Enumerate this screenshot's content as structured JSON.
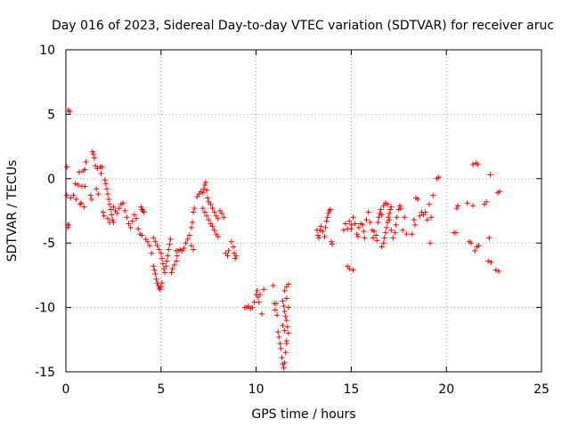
{
  "chart_data": {
    "type": "scatter",
    "title": "Day 016 of 2023, Sidereal Day-to-day VTEC variation (SDTVAR) for receiver aruc",
    "xlabel": "GPS time / hours",
    "ylabel": "SDTVAR / TECUs",
    "xlim": [
      0,
      25
    ],
    "ylim": [
      -15,
      10
    ],
    "xticks": [
      0,
      5,
      10,
      15,
      20,
      25
    ],
    "xtick_labels": [
      "0",
      "5",
      "10",
      "15",
      "20",
      "25"
    ],
    "yticks": [
      10,
      5,
      0,
      -5,
      -10,
      -15
    ],
    "ytick_labels": [
      "10",
      "5",
      "0",
      "-5",
      "-10",
      "-15"
    ],
    "grid": true,
    "marker": "+",
    "color": "#ff0000",
    "series": [
      {
        "name": "SDTVAR",
        "points": [
          [
            0.05,
            0.9
          ],
          [
            0.05,
            -1.3
          ],
          [
            0.1,
            -3.6
          ],
          [
            0.1,
            -3.8
          ],
          [
            0.12,
            5.3
          ],
          [
            0.15,
            -3.6
          ],
          [
            0.2,
            5.2
          ],
          [
            0.25,
            -1.5
          ],
          [
            0.4,
            -1.3
          ],
          [
            0.5,
            -0.4
          ],
          [
            0.55,
            -1.6
          ],
          [
            0.65,
            -0.5
          ],
          [
            0.7,
            0.5
          ],
          [
            0.75,
            -2.0
          ],
          [
            0.8,
            -1.9
          ],
          [
            0.85,
            -0.6
          ],
          [
            0.9,
            0.6
          ],
          [
            0.95,
            -2.2
          ],
          [
            1.0,
            0.7
          ],
          [
            1.0,
            -0.6
          ],
          [
            1.05,
            1.3
          ],
          [
            1.3,
            -1.3
          ],
          [
            1.35,
            -1.6
          ],
          [
            1.4,
            2.1
          ],
          [
            1.45,
            1.9
          ],
          [
            1.5,
            1.6
          ],
          [
            1.55,
            1.0
          ],
          [
            1.6,
            -0.8
          ],
          [
            1.65,
            0.8
          ],
          [
            1.7,
            -1.2
          ],
          [
            1.8,
            0.9
          ],
          [
            1.85,
            0.4
          ],
          [
            1.9,
            0.9
          ],
          [
            1.95,
            -2.6
          ],
          [
            2.0,
            -2.9
          ],
          [
            2.05,
            -0.1
          ],
          [
            2.1,
            -0.4
          ],
          [
            2.15,
            -0.8
          ],
          [
            2.2,
            -1.2
          ],
          [
            2.25,
            -1.6
          ],
          [
            2.3,
            -2.0
          ],
          [
            2.35,
            -2.4
          ],
          [
            2.4,
            -2.8
          ],
          [
            2.45,
            -3.2
          ],
          [
            2.5,
            -3.4
          ],
          [
            2.2,
            -3.1
          ],
          [
            2.3,
            -3.4
          ],
          [
            2.5,
            -2.2
          ],
          [
            2.6,
            -2.5
          ],
          [
            2.7,
            -2.7
          ],
          [
            2.8,
            -2.3
          ],
          [
            2.9,
            -2.0
          ],
          [
            3.0,
            -1.9
          ],
          [
            3.1,
            -2.5
          ],
          [
            3.2,
            -3.0
          ],
          [
            3.3,
            -3.5
          ],
          [
            3.4,
            -3.8
          ],
          [
            3.5,
            -3.3
          ],
          [
            3.6,
            -2.8
          ],
          [
            3.7,
            -3.1
          ],
          [
            3.8,
            -3.9
          ],
          [
            3.9,
            -4.3
          ],
          [
            4.0,
            -4.4
          ],
          [
            3.95,
            -2.2
          ],
          [
            4.0,
            -2.4
          ],
          [
            4.05,
            -2.5
          ],
          [
            4.1,
            -2.6
          ],
          [
            4.2,
            -4.7
          ],
          [
            4.3,
            -4.9
          ],
          [
            4.4,
            -5.2
          ],
          [
            4.5,
            -5.8
          ],
          [
            4.6,
            -6.8
          ],
          [
            4.65,
            -7.1
          ],
          [
            4.7,
            -7.4
          ],
          [
            4.75,
            -7.8
          ],
          [
            4.8,
            -8.1
          ],
          [
            4.85,
            -8.3
          ],
          [
            4.9,
            -8.5
          ],
          [
            4.95,
            -8.6
          ],
          [
            5.0,
            -8.4
          ],
          [
            5.05,
            -8.1
          ],
          [
            4.6,
            -4.6
          ],
          [
            4.7,
            -4.9
          ],
          [
            4.8,
            -5.2
          ],
          [
            4.9,
            -5.5
          ],
          [
            5.0,
            -5.8
          ],
          [
            5.05,
            -6.2
          ],
          [
            5.1,
            -6.6
          ],
          [
            5.15,
            -7.0
          ],
          [
            5.2,
            -7.3
          ],
          [
            5.25,
            -6.8
          ],
          [
            5.3,
            -6.4
          ],
          [
            5.35,
            -6.0
          ],
          [
            5.4,
            -5.5
          ],
          [
            5.45,
            -5.1
          ],
          [
            5.5,
            -4.7
          ],
          [
            5.55,
            -7.3
          ],
          [
            5.6,
            -7.0
          ],
          [
            5.7,
            -6.7
          ],
          [
            5.8,
            -6.4
          ],
          [
            5.85,
            -6.0
          ],
          [
            5.8,
            -5.6
          ],
          [
            5.9,
            -5.6
          ],
          [
            6.0,
            -5.5
          ],
          [
            6.1,
            -5.6
          ],
          [
            6.2,
            -5.4
          ],
          [
            6.3,
            -5.0
          ],
          [
            6.4,
            -4.7
          ],
          [
            6.5,
            -4.4
          ],
          [
            6.6,
            -5.2
          ],
          [
            6.7,
            -5.5
          ],
          [
            6.6,
            -3.8
          ],
          [
            6.65,
            -3.4
          ],
          [
            6.7,
            -2.6
          ],
          [
            6.75,
            -2.3
          ],
          [
            6.9,
            -1.4
          ],
          [
            7.0,
            -1.2
          ],
          [
            7.1,
            -1.0
          ],
          [
            7.2,
            -1.1
          ],
          [
            7.25,
            -0.8
          ],
          [
            7.3,
            -0.5
          ],
          [
            7.35,
            -0.3
          ],
          [
            7.4,
            -0.9
          ],
          [
            7.45,
            -1.5
          ],
          [
            7.2,
            -2.3
          ],
          [
            7.3,
            -2.6
          ],
          [
            7.4,
            -2.9
          ],
          [
            7.5,
            -3.2
          ],
          [
            7.6,
            -3.5
          ],
          [
            7.7,
            -3.7
          ],
          [
            7.8,
            -4.0
          ],
          [
            7.9,
            -4.3
          ],
          [
            8.0,
            -4.5
          ],
          [
            7.5,
            -1.8
          ],
          [
            7.6,
            -2.0
          ],
          [
            7.7,
            -2.3
          ],
          [
            7.8,
            -2.6
          ],
          [
            7.9,
            -2.9
          ],
          [
            8.0,
            -3.1
          ],
          [
            8.1,
            -2.5
          ],
          [
            8.2,
            -2.7
          ],
          [
            8.3,
            -3.0
          ],
          [
            8.4,
            -5.8
          ],
          [
            8.5,
            -6.0
          ],
          [
            8.55,
            -5.6
          ],
          [
            8.7,
            -4.9
          ],
          [
            8.8,
            -5.3
          ],
          [
            8.85,
            -5.8
          ],
          [
            8.9,
            -6.2
          ],
          [
            8.95,
            -6.0
          ],
          [
            9.4,
            -10.0
          ],
          [
            9.5,
            -10.0
          ],
          [
            9.6,
            -9.9
          ],
          [
            9.7,
            -10.1
          ],
          [
            9.8,
            -10.0
          ],
          [
            9.9,
            -9.6
          ],
          [
            10.0,
            -9.0
          ],
          [
            10.05,
            -8.7
          ],
          [
            10.1,
            -9.2
          ],
          [
            10.15,
            -9.6
          ],
          [
            10.2,
            -9.0
          ],
          [
            10.3,
            -10.5
          ],
          [
            10.4,
            -8.6
          ],
          [
            10.9,
            -8.3
          ],
          [
            10.95,
            -9.7
          ],
          [
            11.0,
            -10.2
          ],
          [
            11.05,
            -9.7
          ],
          [
            11.1,
            -10.6
          ],
          [
            11.15,
            -11.9
          ],
          [
            11.2,
            -12.3
          ],
          [
            11.25,
            -12.8
          ],
          [
            11.3,
            -13.2
          ],
          [
            11.35,
            -13.9
          ],
          [
            11.4,
            -14.4
          ],
          [
            11.45,
            -14.7
          ],
          [
            11.5,
            -14.3
          ],
          [
            11.55,
            -13.5
          ],
          [
            11.6,
            -12.8
          ],
          [
            11.4,
            -9.5
          ],
          [
            11.45,
            -9.9
          ],
          [
            11.5,
            -10.3
          ],
          [
            11.55,
            -10.7
          ],
          [
            11.6,
            -11.0
          ],
          [
            11.65,
            -11.5
          ],
          [
            11.7,
            -12.0
          ],
          [
            11.4,
            -11.4
          ],
          [
            11.5,
            -11.8
          ],
          [
            11.6,
            -12.6
          ],
          [
            11.5,
            -8.7
          ],
          [
            11.6,
            -8.4
          ],
          [
            11.7,
            -8.2
          ],
          [
            11.6,
            -9.3
          ],
          [
            11.7,
            -10.0
          ],
          [
            13.2,
            -4.0
          ],
          [
            13.25,
            -4.4
          ],
          [
            13.3,
            -4.6
          ],
          [
            13.35,
            -4.0
          ],
          [
            13.4,
            -3.7
          ],
          [
            13.5,
            -4.1
          ],
          [
            13.6,
            -4.5
          ],
          [
            13.65,
            -3.8
          ],
          [
            13.7,
            -3.3
          ],
          [
            13.75,
            -3.0
          ],
          [
            13.8,
            -2.7
          ],
          [
            13.85,
            -2.5
          ],
          [
            13.9,
            -2.4
          ],
          [
            13.95,
            -4.9
          ],
          [
            14.0,
            -5.1
          ],
          [
            14.6,
            -4.0
          ],
          [
            14.7,
            -3.5
          ],
          [
            14.8,
            -3.9
          ],
          [
            14.9,
            -3.3
          ],
          [
            15.0,
            -3.6
          ],
          [
            15.1,
            -3.0
          ],
          [
            15.2,
            -3.5
          ],
          [
            14.8,
            -6.8
          ],
          [
            14.9,
            -7.0
          ],
          [
            15.0,
            -3.9
          ],
          [
            15.1,
            -7.1
          ],
          [
            15.3,
            -4.3
          ],
          [
            15.35,
            -4.5
          ],
          [
            15.4,
            -3.8
          ],
          [
            15.5,
            -3.5
          ],
          [
            15.6,
            -3.6
          ],
          [
            15.65,
            -4.1
          ],
          [
            15.7,
            -4.6
          ],
          [
            15.8,
            -3.2
          ],
          [
            15.9,
            -2.6
          ],
          [
            16.0,
            -3.4
          ],
          [
            16.1,
            -4.0
          ],
          [
            16.15,
            -4.6
          ],
          [
            16.2,
            -4.1
          ],
          [
            16.3,
            -4.4
          ],
          [
            16.35,
            -4.8
          ],
          [
            16.4,
            -3.4
          ],
          [
            16.45,
            -3.0
          ],
          [
            16.5,
            -2.7
          ],
          [
            16.55,
            -2.4
          ],
          [
            16.6,
            -2.8
          ],
          [
            16.6,
            -5.3
          ],
          [
            16.7,
            -5.0
          ],
          [
            16.75,
            -4.6
          ],
          [
            16.8,
            -4.2
          ],
          [
            16.85,
            -3.8
          ],
          [
            16.9,
            -3.4
          ],
          [
            16.95,
            -3.0
          ],
          [
            17.0,
            -2.7
          ],
          [
            17.05,
            -2.4
          ],
          [
            17.1,
            -2.2
          ],
          [
            16.7,
            -2.1
          ],
          [
            16.8,
            -1.9
          ],
          [
            16.9,
            -2.0
          ],
          [
            17.0,
            -3.2
          ],
          [
            17.1,
            -4.0
          ],
          [
            17.2,
            -4.6
          ],
          [
            17.3,
            -4.2
          ],
          [
            17.35,
            -3.6
          ],
          [
            17.4,
            -3.0
          ],
          [
            17.5,
            -2.4
          ],
          [
            17.55,
            -2.1
          ],
          [
            17.6,
            -2.3
          ],
          [
            17.7,
            -4.0
          ],
          [
            17.8,
            -3.0
          ],
          [
            17.9,
            -4.3
          ],
          [
            18.2,
            -4.3
          ],
          [
            18.3,
            -3.2
          ],
          [
            18.35,
            -3.6
          ],
          [
            18.4,
            -1.5
          ],
          [
            18.5,
            -1.6
          ],
          [
            18.6,
            -2.9
          ],
          [
            18.7,
            -2.6
          ],
          [
            18.8,
            -2.8
          ],
          [
            18.9,
            -2.6
          ],
          [
            19.0,
            -3.2
          ],
          [
            19.1,
            -2.0
          ],
          [
            19.15,
            -5.0
          ],
          [
            19.2,
            -3.0
          ],
          [
            19.3,
            -1.3
          ],
          [
            19.5,
            0.0
          ],
          [
            19.6,
            0.1
          ],
          [
            20.4,
            -4.2
          ],
          [
            20.5,
            -4.2
          ],
          [
            20.6,
            -2.1
          ],
          [
            20.55,
            -2.3
          ],
          [
            21.1,
            -1.9
          ],
          [
            21.2,
            -4.9
          ],
          [
            21.3,
            -5.0
          ],
          [
            21.4,
            1.1
          ],
          [
            21.5,
            -5.6
          ],
          [
            21.55,
            1.2
          ],
          [
            21.6,
            -5.3
          ],
          [
            21.65,
            1.1
          ],
          [
            21.7,
            -5.2
          ],
          [
            21.4,
            -2.1
          ],
          [
            22.0,
            -2.0
          ],
          [
            22.1,
            -1.8
          ],
          [
            22.2,
            -6.4
          ],
          [
            22.25,
            -4.6
          ],
          [
            22.3,
            0.3
          ],
          [
            22.35,
            -6.5
          ],
          [
            22.6,
            -7.1
          ],
          [
            22.7,
            -1.1
          ],
          [
            22.75,
            -7.2
          ],
          [
            22.8,
            -1.0
          ]
        ]
      }
    ]
  }
}
